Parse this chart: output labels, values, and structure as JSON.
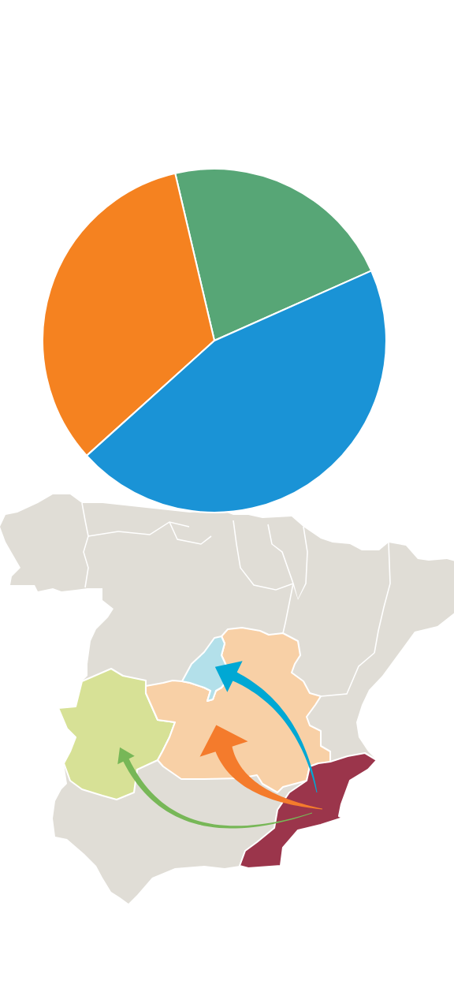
{
  "chart_data": {
    "type": "pie",
    "categories": [
      null,
      null,
      null
    ],
    "values": [
      22,
      33,
      45
    ],
    "colors": [
      "#57a676",
      "#f58220",
      "#1a93d6"
    ]
  }
}
